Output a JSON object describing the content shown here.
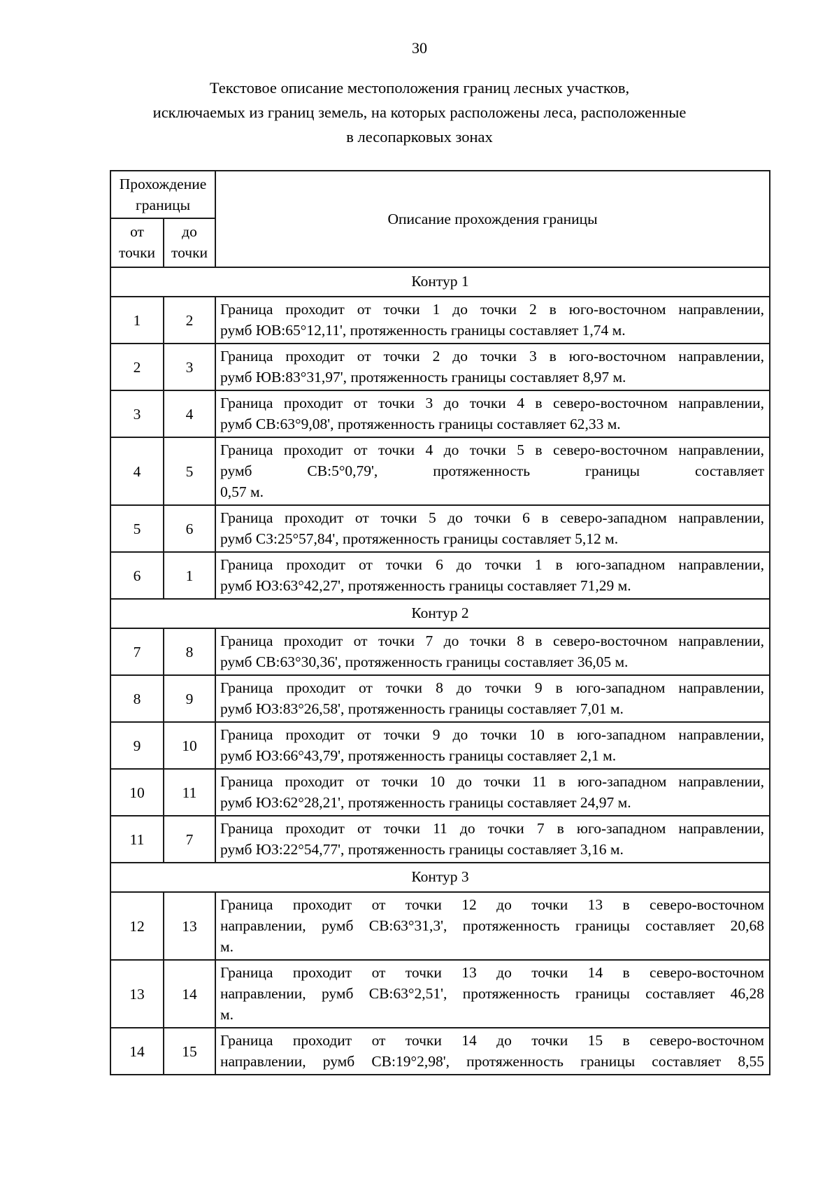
{
  "page": {
    "number": "30"
  },
  "title": {
    "lines": [
      "Текстовое описание местоположения границ лесных участков,",
      "исключаемых из границ земель, на которых расположены леса, расположенные",
      "в лесопарковых зонах"
    ]
  },
  "colors": {
    "text": "#000000",
    "background": "#ffffff",
    "table_border": "#1b1b1b"
  },
  "table": {
    "header": {
      "group": "Прохождение границы",
      "col_from": "от точки",
      "col_to": "до точки",
      "col_desc": "Описание прохождения границы"
    },
    "sections": [
      {
        "label": "Контур 1",
        "rows": [
          {
            "from": "1",
            "to": "2",
            "lines": [
              "Граница проходит от точки 1 до точки 2 в юго-восточном направлении,",
              "румб ЮВ:65°12,11', протяженность границы составляет 1,74 м."
            ]
          },
          {
            "from": "2",
            "to": "3",
            "lines": [
              "Граница проходит от точки 2 до точки 3 в юго-восточном направлении,",
              "румб ЮВ:83°31,97', протяженность границы составляет 8,97 м."
            ]
          },
          {
            "from": "3",
            "to": "4",
            "lines": [
              "Граница проходит от точки 3 до точки 4 в северо-восточном направлении,",
              "румб СВ:63°9,08', протяженность границы составляет 62,33 м."
            ]
          },
          {
            "from": "4",
            "to": "5",
            "lines": [
              "Граница проходит от точки 4 до точки 5 в северо-восточном направлении,",
              "румб СВ:5°0,79', протяженность границы составляет",
              "0,57 м."
            ]
          },
          {
            "from": "5",
            "to": "6",
            "lines": [
              "Граница проходит от точки 5 до точки 6 в северо-западном направлении,",
              "румб СЗ:25°57,84', протяженность границы составляет 5,12 м."
            ]
          },
          {
            "from": "6",
            "to": "1",
            "lines": [
              "Граница проходит от точки 6 до точки 1 в юго-западном направлении,",
              "румб ЮЗ:63°42,27', протяженность границы составляет 71,29 м."
            ]
          }
        ]
      },
      {
        "label": "Контур 2",
        "rows": [
          {
            "from": "7",
            "to": "8",
            "lines": [
              "Граница проходит от точки 7 до точки 8 в северо-восточном направлении,",
              "румб СВ:63°30,36', протяженность границы составляет 36,05 м."
            ]
          },
          {
            "from": "8",
            "to": "9",
            "lines": [
              "Граница проходит от точки 8 до точки 9 в юго-западном направлении,",
              "румб ЮЗ:83°26,58', протяженность границы составляет 7,01 м."
            ]
          },
          {
            "from": "9",
            "to": "10",
            "lines": [
              "Граница проходит от точки 9 до точки 10 в юго-западном направлении,",
              "румб ЮЗ:66°43,79', протяженность границы составляет 2,1 м."
            ]
          },
          {
            "from": "10",
            "to": "11",
            "lines": [
              "Граница проходит от точки 10 до точки 11 в юго-западном направлении,",
              "румб ЮЗ:62°28,21', протяженность границы составляет 24,97 м."
            ]
          },
          {
            "from": "11",
            "to": "7",
            "lines": [
              "Граница проходит от точки 11 до точки 7 в юго-западном направлении,",
              "румб ЮЗ:22°54,77', протяженность границы составляет 3,16 м."
            ]
          }
        ]
      },
      {
        "label": "Контур 3",
        "rows": [
          {
            "from": "12",
            "to": "13",
            "lines": [
              "Граница проходит от точки 12 до точки 13 в северо-восточном",
              "направлении, румб СВ:63°31,3', протяженность границы составляет 20,68",
              "м."
            ]
          },
          {
            "from": "13",
            "to": "14",
            "lines": [
              "Граница проходит от точки 13 до точки 14 в северо-восточном",
              "направлении, румб СВ:63°2,51', протяженность границы составляет 46,28",
              "м."
            ]
          },
          {
            "from": "14",
            "to": "15",
            "continues": true,
            "lines": [
              "Граница проходит от точки 14 до точки 15 в северо-восточном",
              "направлении, румб СВ:19°2,98', протяженность границы составляет 8,55"
            ]
          }
        ]
      }
    ]
  }
}
